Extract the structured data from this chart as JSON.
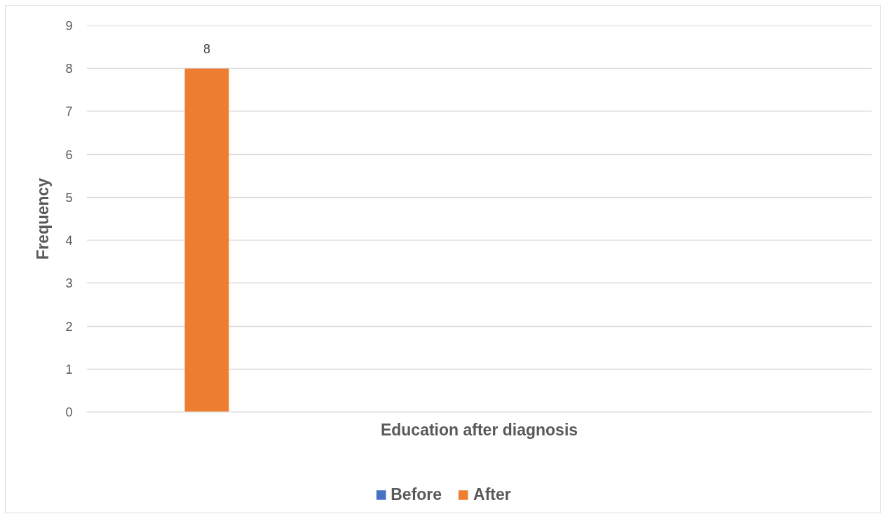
{
  "chart_data": {
    "type": "bar",
    "xlabel": "Education after diagnosis",
    "ylabel": "Frequency",
    "categories": [
      null,
      null,
      null,
      null
    ],
    "series": [
      {
        "name": "Before",
        "color": "#4472c4",
        "values": [
          null,
          null,
          null,
          null
        ]
      },
      {
        "name": "After",
        "color": "#ed7d31",
        "values": [
          8,
          null,
          null,
          null
        ]
      }
    ],
    "ylim": [
      0,
      9
    ],
    "yticks": [
      0,
      1,
      2,
      3,
      4,
      5,
      6,
      7,
      8,
      9
    ],
    "grid": "y",
    "legend": "bottom",
    "data_labels": true
  }
}
